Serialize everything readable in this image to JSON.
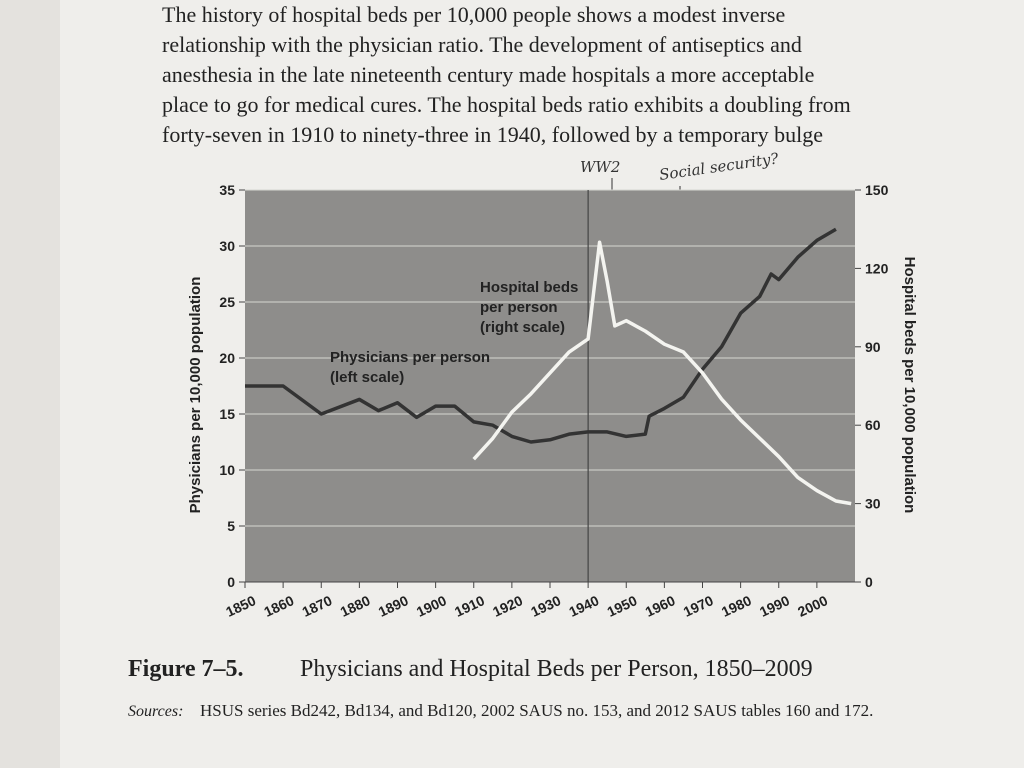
{
  "page": {
    "text_lines": [
      "The history of hospital beds per 10,000 people shows a modest inverse",
      "relationship with the physician ratio. The development of antiseptics and",
      "anesthesia in the late nineteenth century made hospitals a more acceptable",
      "place to go for medical cures. The hospital beds ratio exhibits a doubling from",
      "forty-seven in 1910 to ninety-three in 1940, followed by a temporary bulge"
    ],
    "figure_label": "Figure 7–5.",
    "figure_title": "Physicians and Hospital Beds per Person, 1850–2009",
    "sources_label": "Sources:",
    "sources": "HSUS series Bd242, Bd134, and Bd120, 2002 SAUS no. 153, and 2012 SAUS tables 160 and 172.",
    "handwritten": [
      "WW2",
      "Social security?"
    ]
  },
  "chart_data": {
    "type": "line",
    "ylabel": "Physicians per 10,000 population",
    "y2label": "Hospital beds per 10,000 population",
    "xlim": [
      1850,
      2010
    ],
    "xticks": [
      1850,
      1860,
      1870,
      1880,
      1890,
      1900,
      1910,
      1920,
      1930,
      1940,
      1950,
      1960,
      1970,
      1980,
      1990,
      2000
    ],
    "ylim": [
      0,
      35
    ],
    "yticks": [
      0,
      5,
      10,
      15,
      20,
      25,
      30,
      35
    ],
    "y2lim": [
      0,
      150
    ],
    "y2ticks": [
      0,
      30,
      60,
      90,
      120,
      150
    ],
    "grid": true,
    "vlines": [
      1940
    ],
    "series": [
      {
        "label_lines": [
          "Physicians per person",
          "(left scale)"
        ],
        "color": "#333333",
        "axis": "y",
        "x": [
          1850,
          1860,
          1870,
          1880,
          1885,
          1890,
          1895,
          1900,
          1905,
          1910,
          1915,
          1920,
          1925,
          1930,
          1935,
          1940,
          1945,
          1950,
          1955,
          1956,
          1960,
          1965,
          1970,
          1975,
          1980,
          1985,
          1988,
          1990,
          1995,
          2000,
          2005
        ],
        "values": [
          17.5,
          17.5,
          15,
          16.3,
          15.3,
          16,
          14.7,
          15.7,
          15.7,
          14.3,
          14,
          13,
          12.5,
          12.7,
          13.2,
          13.4,
          13.4,
          13,
          13.2,
          14.8,
          15.5,
          16.5,
          19,
          21,
          24,
          25.5,
          27.5,
          27,
          29,
          30.5,
          31.5
        ]
      },
      {
        "label_lines": [
          "Hospital beds",
          "per person",
          "(right scale)"
        ],
        "color": "#f4f4f0",
        "axis": "y2",
        "x": [
          1910,
          1915,
          1920,
          1925,
          1930,
          1935,
          1940,
          1943,
          1945,
          1947,
          1950,
          1955,
          1960,
          1965,
          1970,
          1975,
          1980,
          1985,
          1990,
          1995,
          2000,
          2005,
          2009
        ],
        "values": [
          47,
          55,
          65,
          72,
          80,
          88,
          93,
          130,
          115,
          98,
          100,
          96,
          91,
          88,
          80,
          70,
          62,
          55,
          48,
          40,
          35,
          31,
          30
        ]
      }
    ]
  }
}
